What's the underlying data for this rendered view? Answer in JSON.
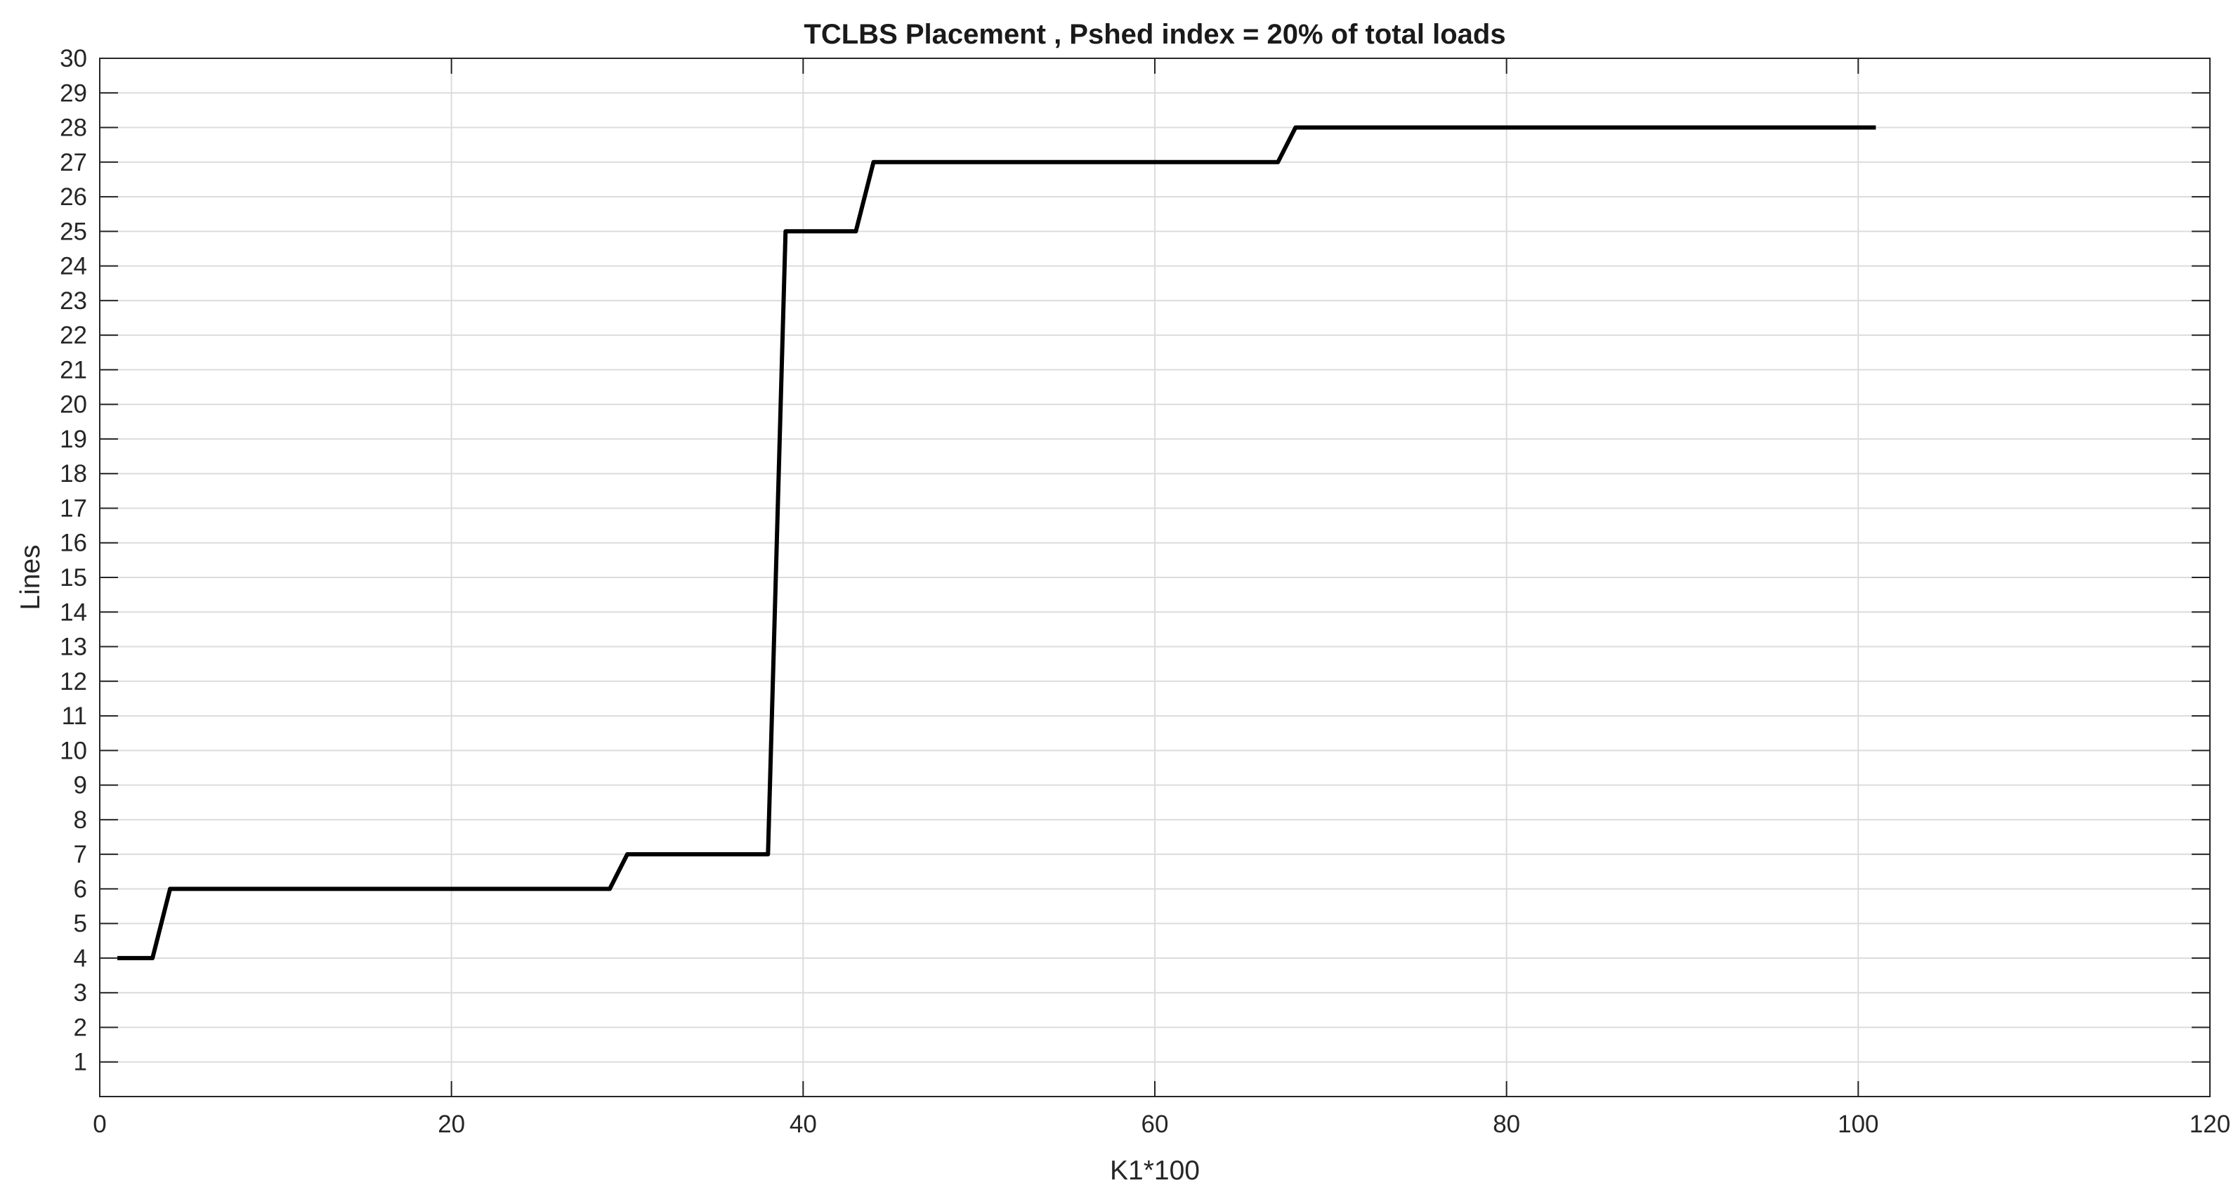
{
  "chart_data": {
    "type": "line",
    "title": "TCLBS Placement , Pshed index = 20% of total loads",
    "xlabel": "K1*100",
    "ylabel": "Lines",
    "xlim": [
      0,
      120
    ],
    "ylim": [
      0,
      30
    ],
    "xticks": [
      0,
      20,
      40,
      60,
      80,
      100,
      120
    ],
    "xtick_labels": [
      "0",
      "20",
      "40",
      "60",
      "80",
      "100",
      "120"
    ],
    "yticks": [
      1,
      2,
      3,
      4,
      5,
      6,
      7,
      8,
      9,
      10,
      11,
      12,
      13,
      14,
      15,
      16,
      17,
      18,
      19,
      20,
      21,
      22,
      23,
      24,
      25,
      26,
      27,
      28,
      29,
      30
    ],
    "ytick_labels": [
      "1",
      "2",
      "3",
      "4",
      "5",
      "6",
      "7",
      "8",
      "9",
      "10",
      "11",
      "12",
      "13",
      "14",
      "15",
      "16",
      "17",
      "18",
      "19",
      "20",
      "21",
      "22",
      "23",
      "24",
      "25",
      "26",
      "27",
      "28",
      "29",
      "30"
    ],
    "grid": true,
    "series": [
      {
        "color": "#000000",
        "x": [
          1,
          2,
          3,
          4,
          5,
          10,
          20,
          29,
          30,
          31,
          35,
          38,
          39,
          40,
          43,
          44,
          45,
          50,
          60,
          67,
          68,
          69,
          80,
          90,
          101
        ],
        "y": [
          4,
          4,
          4,
          6,
          6,
          6,
          6,
          6,
          7,
          7,
          7,
          7,
          25,
          25,
          25,
          27,
          27,
          27,
          27,
          27,
          28,
          28,
          28,
          28,
          28
        ]
      }
    ]
  }
}
